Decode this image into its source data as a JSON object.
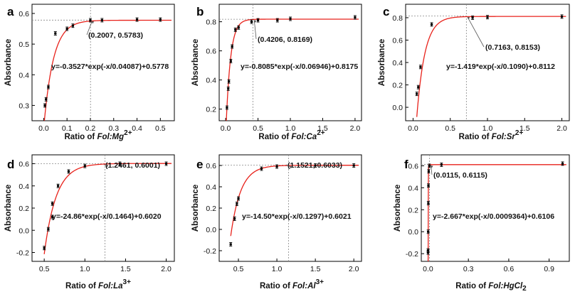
{
  "chart_data": [
    {
      "panel": "a",
      "type": "scatter",
      "xlabel_parts": [
        "Ratio of ",
        "Fol:Mg",
        "2+"
      ],
      "ylabel": "Absorbance",
      "xlim": [
        -0.05,
        0.56
      ],
      "ylim": [
        0.25,
        0.63
      ],
      "xticks": [
        0.0,
        0.1,
        0.2,
        0.3,
        0.4,
        0.5
      ],
      "xtick_labels": [
        "0.0",
        "0.1",
        "0.2",
        "0.3",
        "0.4",
        "0.5"
      ],
      "yticks": [
        0.3,
        0.4,
        0.5,
        0.6
      ],
      "ytick_labels": [
        "0.3",
        "0.4",
        "0.5",
        "0.6"
      ],
      "points": [
        [
          0.005,
          0.3
        ],
        [
          0.01,
          0.32
        ],
        [
          0.02,
          0.36
        ],
        [
          0.05,
          0.535
        ],
        [
          0.1,
          0.55
        ],
        [
          0.125,
          0.56
        ],
        [
          0.2,
          0.578
        ],
        [
          0.25,
          0.578
        ],
        [
          0.4,
          0.58
        ],
        [
          0.5,
          0.58
        ]
      ],
      "fit": {
        "A": 0.3527,
        "t": 0.04087,
        "y0": 0.5778,
        "x_from": 0.0
      },
      "equation": "y=-0.3527*exp(-x/0.04087)+0.5778",
      "marker": {
        "x": 0.2007,
        "y": 0.5783,
        "label": "(0.2007, 0.5783)"
      }
    },
    {
      "panel": "b",
      "type": "scatter",
      "xlabel_parts": [
        "Ratio of ",
        "Fol:Ca",
        "2+"
      ],
      "ylabel": "Absorbance",
      "xlim": [
        -0.1,
        2.1
      ],
      "ylim": [
        0.12,
        0.92
      ],
      "xticks": [
        0.0,
        0.5,
        1.0,
        1.5,
        2.0
      ],
      "xtick_labels": [
        "0.0",
        "0.5",
        "1.0",
        "1.5",
        "2.0"
      ],
      "yticks": [
        0.2,
        0.4,
        0.6,
        0.8
      ],
      "ytick_labels": [
        "0.2",
        "0.4",
        "0.6",
        "0.8"
      ],
      "points": [
        [
          0.02,
          0.21
        ],
        [
          0.04,
          0.34
        ],
        [
          0.05,
          0.39
        ],
        [
          0.08,
          0.53
        ],
        [
          0.1,
          0.63
        ],
        [
          0.15,
          0.745
        ],
        [
          0.2,
          0.76
        ],
        [
          0.4,
          0.8
        ],
        [
          0.5,
          0.81
        ],
        [
          0.8,
          0.81
        ],
        [
          1.0,
          0.82
        ],
        [
          2.0,
          0.83
        ]
      ],
      "fit": {
        "A": 0.8085,
        "t": 0.06946,
        "y0": 0.8175,
        "x_from": 0.0
      },
      "equation": "y=-0.8085*exp(-x/0.06946)+0.8175",
      "marker": {
        "x": 0.4206,
        "y": 0.8169,
        "label": "(0.4206, 0.8169)"
      }
    },
    {
      "panel": "c",
      "type": "scatter",
      "xlabel_parts": [
        "Ratio of ",
        "Fol:Sr",
        "2+"
      ],
      "ylabel": "Absorbance",
      "xlim": [
        -0.1,
        2.1
      ],
      "ylim": [
        -0.12,
        0.92
      ],
      "xticks": [
        0.0,
        0.5,
        1.0,
        1.5,
        2.0
      ],
      "xtick_labels": [
        "0.0",
        "0.5",
        "1.0",
        "1.5",
        "2.0"
      ],
      "yticks": [
        0.0,
        0.2,
        0.4,
        0.6,
        0.8
      ],
      "ytick_labels": [
        "0.0",
        "0.2",
        "0.4",
        "0.6",
        "0.8"
      ],
      "points": [
        [
          0.05,
          0.12
        ],
        [
          0.07,
          0.18
        ],
        [
          0.1,
          0.36
        ],
        [
          0.25,
          0.74
        ],
        [
          0.8,
          0.8
        ],
        [
          1.0,
          0.805
        ],
        [
          2.0,
          0.81
        ]
      ],
      "fit": {
        "A": 1.419,
        "t": 0.109,
        "y0": 0.8112,
        "x_from": 0.05
      },
      "equation": "y=-1.419*exp(-x/0.1090)+0.8112",
      "marker": {
        "x": 0.7163,
        "y": 0.8153,
        "label": "(0.7163, 0.8153)"
      }
    },
    {
      "panel": "d",
      "type": "scatter",
      "xlabel_parts": [
        "Ratio of ",
        "Fol:La",
        "3+"
      ],
      "ylabel": "Absorbance",
      "xlim": [
        0.35,
        2.1
      ],
      "ylim": [
        -0.28,
        0.68
      ],
      "xticks": [
        0.5,
        1.0,
        1.5,
        2.0
      ],
      "xtick_labels": [
        "0.5",
        "1.0",
        "1.5",
        "2.0"
      ],
      "yticks": [
        -0.2,
        0.0,
        0.2,
        0.4,
        0.6
      ],
      "ytick_labels": [
        "-0.2",
        "0.0",
        "0.2",
        "0.4",
        "0.6"
      ],
      "points": [
        [
          0.5,
          -0.16
        ],
        [
          0.55,
          0.01
        ],
        [
          0.6,
          0.12
        ],
        [
          0.6,
          0.24
        ],
        [
          0.67,
          0.4
        ],
        [
          0.8,
          0.53
        ],
        [
          1.0,
          0.58
        ],
        [
          1.43,
          0.6
        ],
        [
          2.0,
          0.6
        ]
      ],
      "fit": {
        "A": 24.86,
        "t": 0.1464,
        "y0": 0.602,
        "x_from": 0.5
      },
      "equation": "y=-24.86*exp(-x/0.1464)+0.6020",
      "marker": {
        "x": 1.2461,
        "y": 0.6001,
        "label": "(1.2461, 0.6001)"
      }
    },
    {
      "panel": "e",
      "type": "scatter",
      "xlabel_parts": [
        "Ratio of ",
        "Fol:Al",
        "3+"
      ],
      "ylabel": "Absorbance",
      "xlim": [
        0.25,
        2.1
      ],
      "ylim": [
        -0.3,
        0.7
      ],
      "xticks": [
        0.5,
        1.0,
        1.5,
        2.0
      ],
      "xtick_labels": [
        "0.5",
        "1.0",
        "1.5",
        "2.0"
      ],
      "yticks": [
        -0.2,
        0.0,
        0.2,
        0.4,
        0.6
      ],
      "ytick_labels": [
        "-0.2",
        "0.0",
        "0.2",
        "0.4",
        "0.6"
      ],
      "points": [
        [
          0.4,
          -0.14
        ],
        [
          0.45,
          0.1
        ],
        [
          0.48,
          0.24
        ],
        [
          0.5,
          0.29
        ],
        [
          0.8,
          0.57
        ],
        [
          1.0,
          0.59
        ],
        [
          1.5,
          0.6
        ],
        [
          2.0,
          0.6
        ]
      ],
      "fit": {
        "A": 14.5,
        "t": 0.1297,
        "y0": 0.6021,
        "x_from": 0.4
      },
      "equation": "y=-14.50*exp(-x/0.1297)+0.6021",
      "marker": {
        "x": 1.1521,
        "y": 0.6033,
        "label": "(1.1521, 0.6033)"
      }
    },
    {
      "panel": "f",
      "type": "scatter",
      "xlabel_parts": [
        "Ratio of ",
        "Fol:HgCl",
        "2"
      ],
      "ylabel": "Absorbance",
      "xlim": [
        -0.05,
        1.05
      ],
      "ylim": [
        -0.27,
        0.7
      ],
      "xticks": [
        0.0,
        0.3,
        0.6,
        0.9
      ],
      "xtick_labels": [
        "0.0",
        "0.3",
        "0.6",
        "0.9"
      ],
      "yticks": [
        -0.2,
        0.0,
        0.2,
        0.4,
        0.6
      ],
      "ytick_labels": [
        "-0.2",
        "0.0",
        "0.2",
        "0.4",
        "0.6"
      ],
      "points": [
        [
          0.0,
          -0.17
        ],
        [
          0.0,
          -0.19
        ],
        [
          0.001,
          0.0
        ],
        [
          0.002,
          0.26
        ],
        [
          0.003,
          0.42
        ],
        [
          0.005,
          0.55
        ],
        [
          0.01,
          0.6
        ],
        [
          0.1,
          0.61
        ],
        [
          1.0,
          0.62
        ]
      ],
      "fit": {
        "A": 2.667,
        "t": 0.0009364,
        "y0": 0.6106,
        "x_from": 0.0
      },
      "equation": "y=-2.667*exp(-x/0.0009364)+0.6106",
      "marker": {
        "x": 0.0115,
        "y": 0.6115,
        "label": "(0.0115, 0.6115)"
      }
    }
  ],
  "style": {
    "fit_color": "#e8221b",
    "point_color": "#000000",
    "guide_color": "#888888"
  }
}
